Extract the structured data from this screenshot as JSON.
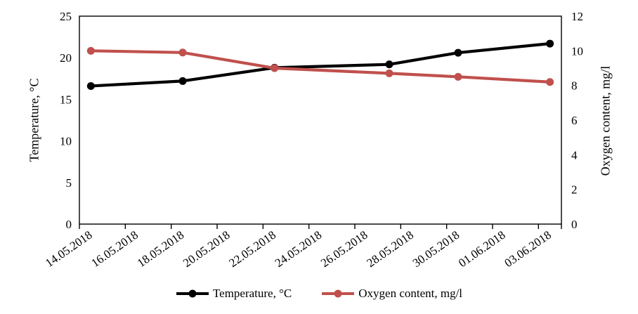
{
  "chart_data": {
    "type": "line",
    "title": "",
    "background": "#FFFFFF",
    "grid": false,
    "x_axis": {
      "tick_labels": [
        "14.05.2018",
        "16.05.2018",
        "18.05.2018",
        "20.05.2018",
        "22.05.2018",
        "24.05.2018",
        "26.05.2018",
        "28.05.2018",
        "30.05.2018",
        "01.06.2018",
        "03.06.2018"
      ],
      "total_days": 21,
      "tick_day_step": 2,
      "label_rotation_deg": -35
    },
    "left_axis": {
      "label": "Temperature, °C",
      "ticks": [
        0,
        5,
        10,
        15,
        20,
        25
      ],
      "range": [
        0,
        25
      ]
    },
    "right_axis": {
      "label": "Oxygen content, mg/l",
      "ticks": [
        0,
        2,
        4,
        6,
        8,
        10,
        12
      ],
      "range": [
        0,
        12
      ]
    },
    "point_dates": [
      "14.05.2018",
      "18.05.2018",
      "22.05.2018",
      "27.05.2018",
      "30.05.2018",
      "03.06.2018"
    ],
    "points_day_offsets": [
      0.5,
      4.5,
      8.5,
      13.5,
      16.5,
      20.5
    ],
    "series": [
      {
        "id": "temperature",
        "name": "Temperature, °C",
        "axis": "left",
        "color": "#000000",
        "values": [
          16.6,
          17.2,
          18.8,
          19.2,
          20.6,
          21.7
        ]
      },
      {
        "id": "oxygen",
        "name": "Oxygen content, mg/l",
        "axis": "right",
        "color": "#C0504D",
        "values": [
          10.0,
          9.9,
          9.0,
          8.7,
          8.5,
          8.2
        ]
      }
    ],
    "legend": {
      "position": "bottom"
    }
  }
}
